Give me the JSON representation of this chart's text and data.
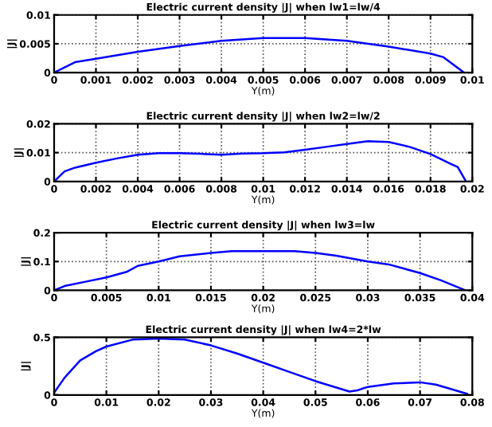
{
  "chart_data": [
    {
      "type": "line",
      "title": "Electric current density |J| when lw1=lw/4",
      "xlabel": "Y(m)",
      "ylabel": "|J|",
      "xlim": [
        0,
        0.01
      ],
      "ylim": [
        0,
        0.01
      ],
      "xticks": [
        0,
        0.001,
        0.002,
        0.003,
        0.004,
        0.005,
        0.006,
        0.007,
        0.008,
        0.009,
        0.01
      ],
      "yticks": [
        0,
        0.005,
        0.01
      ],
      "grid": true,
      "marker": "none",
      "line_style": "solid",
      "series": [
        {
          "color": "#0000ff",
          "x": [
            0,
            0.0005,
            0.001,
            0.002,
            0.003,
            0.004,
            0.005,
            0.006,
            0.007,
            0.008,
            0.009,
            0.0093,
            0.0098
          ],
          "values": [
            0,
            0.0018,
            0.0024,
            0.0036,
            0.0046,
            0.0055,
            0.006,
            0.006,
            0.0055,
            0.0045,
            0.0033,
            0.0027,
            0
          ]
        }
      ]
    },
    {
      "type": "line",
      "title": "Electric current density |J| when lw2=lw/2",
      "xlabel": "Y(m)",
      "ylabel": "|J|",
      "xlim": [
        0,
        0.02
      ],
      "ylim": [
        0,
        0.02
      ],
      "xticks": [
        0,
        0.002,
        0.004,
        0.006,
        0.008,
        0.01,
        0.012,
        0.014,
        0.016,
        0.018,
        0.02
      ],
      "yticks": [
        0,
        0.01,
        0.02
      ],
      "grid": true,
      "marker": "none",
      "line_style": "solid",
      "series": [
        {
          "color": "#0000ff",
          "x": [
            0,
            0.0005,
            0.001,
            0.002,
            0.003,
            0.004,
            0.005,
            0.006,
            0.007,
            0.008,
            0.009,
            0.01,
            0.011,
            0.012,
            0.013,
            0.014,
            0.015,
            0.016,
            0.017,
            0.018,
            0.019,
            0.0193,
            0.0197
          ],
          "values": [
            0,
            0.0035,
            0.0048,
            0.0065,
            0.008,
            0.0093,
            0.0098,
            0.0098,
            0.0096,
            0.0093,
            0.0097,
            0.0098,
            0.0101,
            0.011,
            0.012,
            0.013,
            0.014,
            0.0137,
            0.012,
            0.0095,
            0.006,
            0.005,
            0
          ]
        }
      ]
    },
    {
      "type": "line",
      "title": "Electric current density |J| when lw3=lw",
      "xlabel": "Y(m)",
      "ylabel": "|J|",
      "xlim": [
        0,
        0.04
      ],
      "ylim": [
        0,
        0.2
      ],
      "xticks": [
        0,
        0.005,
        0.01,
        0.015,
        0.02,
        0.025,
        0.03,
        0.035,
        0.04
      ],
      "yticks": [
        0,
        0.1,
        0.2
      ],
      "grid": true,
      "marker": "none",
      "line_style": "solid",
      "series": [
        {
          "color": "#0000ff",
          "x": [
            0,
            0.001,
            0.003,
            0.005,
            0.007,
            0.008,
            0.01,
            0.012,
            0.015,
            0.017,
            0.02,
            0.023,
            0.025,
            0.027,
            0.03,
            0.032,
            0.035,
            0.037,
            0.039,
            0.0393
          ],
          "values": [
            0,
            0.015,
            0.03,
            0.045,
            0.065,
            0.085,
            0.1,
            0.118,
            0.13,
            0.136,
            0.136,
            0.136,
            0.13,
            0.12,
            0.1,
            0.09,
            0.06,
            0.035,
            0.005,
            0
          ]
        }
      ]
    },
    {
      "type": "line",
      "title": "Electric current density |J| when lw4=2*lw",
      "xlabel": "Y(m)",
      "ylabel": "|J|",
      "xlim": [
        0,
        0.08
      ],
      "ylim": [
        0,
        0.5
      ],
      "xticks": [
        0,
        0.01,
        0.02,
        0.03,
        0.04,
        0.05,
        0.06,
        0.07,
        0.08
      ],
      "yticks": [
        0,
        0.5
      ],
      "grid": true,
      "marker": "none",
      "line_style": "solid",
      "series": [
        {
          "color": "#0000ff",
          "x": [
            0,
            0.002,
            0.005,
            0.008,
            0.01,
            0.015,
            0.02,
            0.025,
            0.03,
            0.035,
            0.04,
            0.045,
            0.05,
            0.055,
            0.0565,
            0.058,
            0.06,
            0.065,
            0.07,
            0.073,
            0.076,
            0.079
          ],
          "values": [
            0.02,
            0.15,
            0.3,
            0.38,
            0.42,
            0.48,
            0.49,
            0.48,
            0.43,
            0.36,
            0.28,
            0.2,
            0.12,
            0.05,
            0.03,
            0.04,
            0.07,
            0.1,
            0.11,
            0.09,
            0.05,
            0.01
          ]
        }
      ]
    }
  ]
}
